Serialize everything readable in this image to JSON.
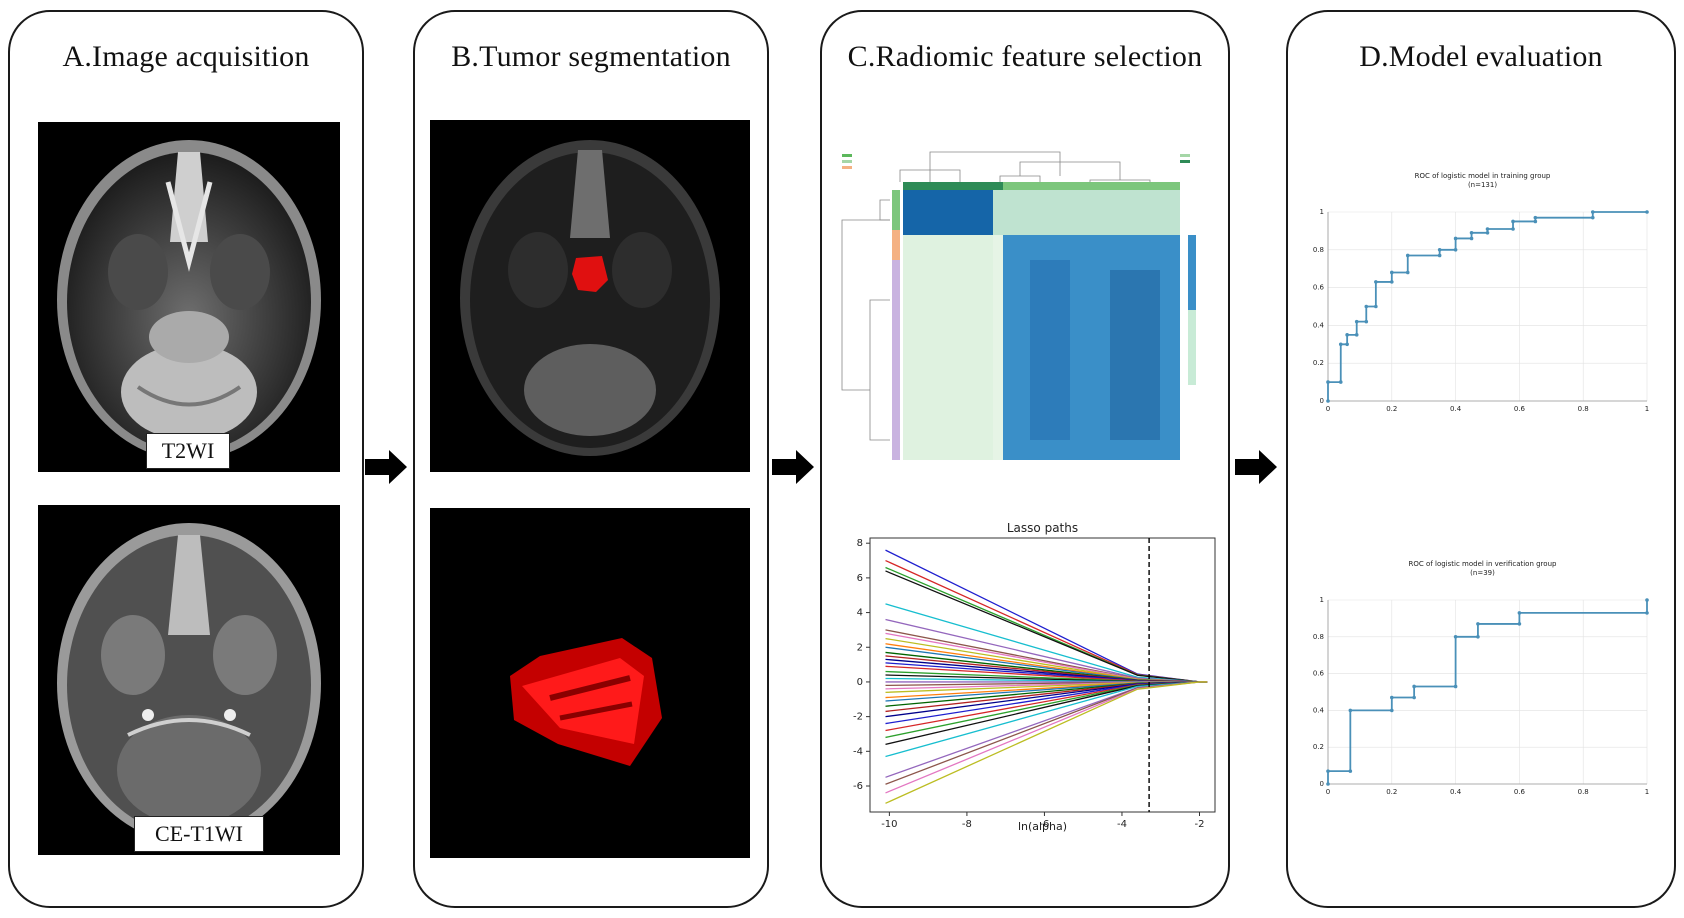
{
  "panels": [
    {
      "title": "A.Image acquisition"
    },
    {
      "title": "B.Tumor segmentation"
    },
    {
      "title": "C.Radiomic feature selection"
    },
    {
      "title": "D.Model evaluation"
    }
  ],
  "labels": {
    "t2wi": "T2WI",
    "cet1wi": "CE-T1WI"
  },
  "colors": {
    "tumor": "#e01010",
    "roc_line": "#4a90b8",
    "lasso_cutoff": "#000000"
  },
  "lasso": {
    "title": "Lasso paths",
    "xlabel": "ln(alpha)",
    "xticks": [
      "-10",
      "-8",
      "-6",
      "-4",
      "-2"
    ],
    "yticks": [
      "8",
      "6",
      "4",
      "2",
      "0",
      "-2",
      "-4",
      "-6"
    ],
    "cutoff_x": -3.3
  },
  "roc_training": {
    "title": "ROC of logistic model in training group",
    "subtitle": "(n=131)",
    "xticks": [
      "0",
      "0.2",
      "0.4",
      "0.6",
      "0.8",
      "1"
    ],
    "yticks": [
      "1",
      "0.8",
      "0.6",
      "0.4",
      "0.2",
      "0"
    ]
  },
  "roc_validation": {
    "title": "ROC of logistic model in verification group",
    "subtitle": "(n=39)",
    "xticks": [
      "0",
      "0.2",
      "0.4",
      "0.6",
      "0.8",
      "1"
    ],
    "yticks": [
      "1",
      "0.8",
      "0.6",
      "0.4",
      "0.2",
      "0"
    ]
  },
  "chart_data": [
    {
      "type": "line",
      "title": "Lasso paths",
      "xlabel": "ln(alpha)",
      "ylabel": "",
      "xlim": [
        -10.5,
        -1.6
      ],
      "ylim": [
        -7.5,
        8.3
      ],
      "converge_x": -2.0,
      "cutoff_x": -3.3,
      "series_start_values": [
        7.6,
        7.0,
        6.6,
        6.4,
        4.5,
        3.6,
        3.0,
        2.8,
        2.5,
        2.2,
        2.0,
        1.7,
        1.5,
        1.3,
        1.1,
        0.9,
        0.6,
        0.4,
        0.2,
        0.0,
        -0.2,
        -0.4,
        -0.6,
        -0.9,
        -1.1,
        -1.4,
        -1.7,
        -2.0,
        -2.4,
        -2.8,
        -3.2,
        -3.6,
        -4.3,
        -5.5,
        -5.9,
        -6.4,
        -7.0
      ]
    },
    {
      "type": "line",
      "title": "ROC of logistic model in training group",
      "xlim": [
        0,
        1
      ],
      "ylim": [
        0,
        1
      ],
      "x": [
        0,
        0,
        0.04,
        0.04,
        0.06,
        0.06,
        0.09,
        0.09,
        0.12,
        0.12,
        0.15,
        0.15,
        0.2,
        0.2,
        0.25,
        0.25,
        0.35,
        0.35,
        0.4,
        0.4,
        0.45,
        0.45,
        0.5,
        0.5,
        0.58,
        0.58,
        0.65,
        0.65,
        0.83,
        0.83,
        1.0
      ],
      "y": [
        0,
        0.1,
        0.1,
        0.3,
        0.3,
        0.35,
        0.35,
        0.42,
        0.42,
        0.5,
        0.5,
        0.63,
        0.63,
        0.68,
        0.68,
        0.77,
        0.77,
        0.8,
        0.8,
        0.86,
        0.86,
        0.89,
        0.89,
        0.91,
        0.91,
        0.95,
        0.95,
        0.97,
        0.97,
        1.0,
        1.0
      ]
    },
    {
      "type": "line",
      "title": "ROC of logistic model in verification group",
      "xlim": [
        0,
        1
      ],
      "ylim": [
        0,
        1
      ],
      "x": [
        0,
        0,
        0.07,
        0.07,
        0.2,
        0.2,
        0.27,
        0.27,
        0.4,
        0.4,
        0.47,
        0.47,
        0.6,
        0.6,
        1.0,
        1.0
      ],
      "y": [
        0,
        0.07,
        0.07,
        0.4,
        0.4,
        0.47,
        0.47,
        0.53,
        0.53,
        0.8,
        0.8,
        0.87,
        0.87,
        0.93,
        0.93,
        1.0
      ]
    }
  ]
}
